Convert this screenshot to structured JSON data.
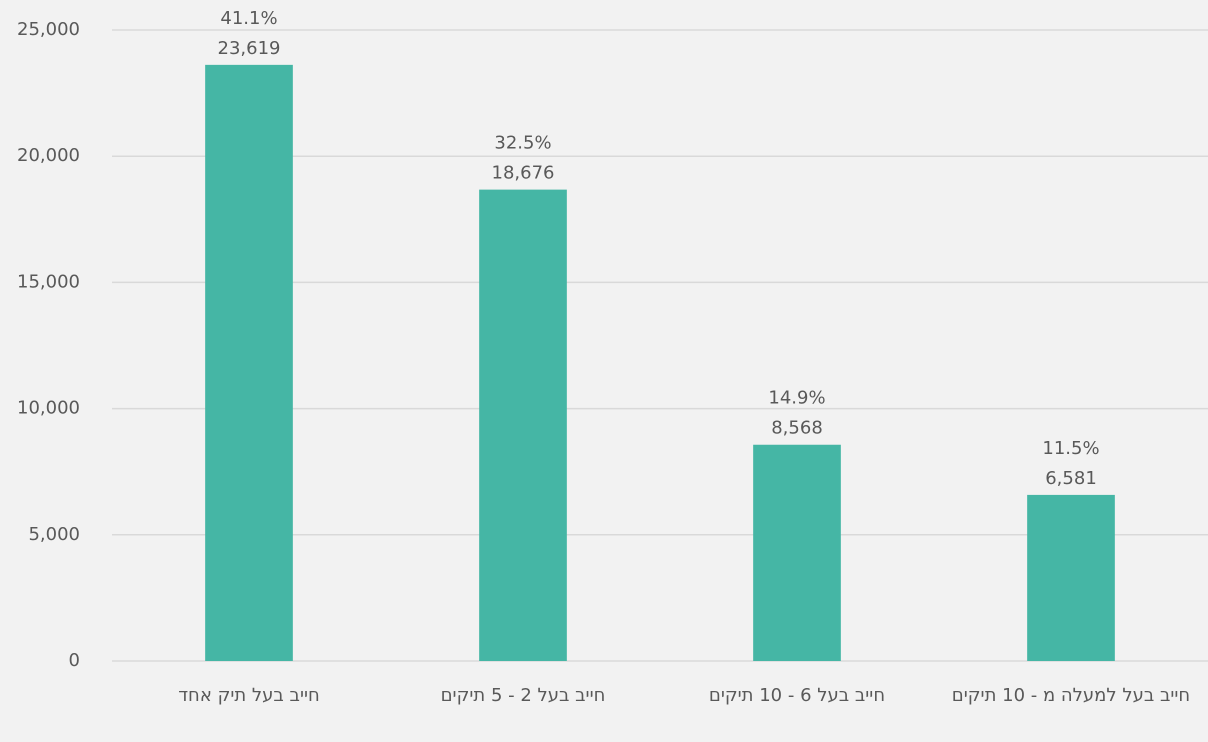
{
  "chart_data": {
    "type": "bar",
    "categories": [
      "חייב בעל תיק אחד",
      "חייב בעל 2 - 5 תיקים",
      "חייב בעל 6 - 10 תיקים",
      "חייב בעל למעלה מ - 10 תיקים"
    ],
    "values": [
      23619,
      18676,
      8568,
      6581
    ],
    "value_labels": [
      "23,619",
      "18,676",
      "8,568",
      "6,581"
    ],
    "percentages": [
      41.1,
      32.5,
      14.9,
      11.5
    ],
    "percentage_labels": [
      "41.1%",
      "32.5%",
      "14.9%",
      "11.5%"
    ],
    "color": "#45b6a5",
    "ylim": [
      0,
      25000
    ],
    "yticks": [
      0,
      {
        "value": 5000,
        "label": "5,000"
      },
      {
        "value": 10000,
        "label": "10,000"
      },
      {
        "value": 15000,
        "label": "15,000"
      },
      {
        "value": 20000,
        "label": "20,000"
      },
      {
        "value": 25000,
        "label": "25,000"
      }
    ],
    "grid": true
  }
}
